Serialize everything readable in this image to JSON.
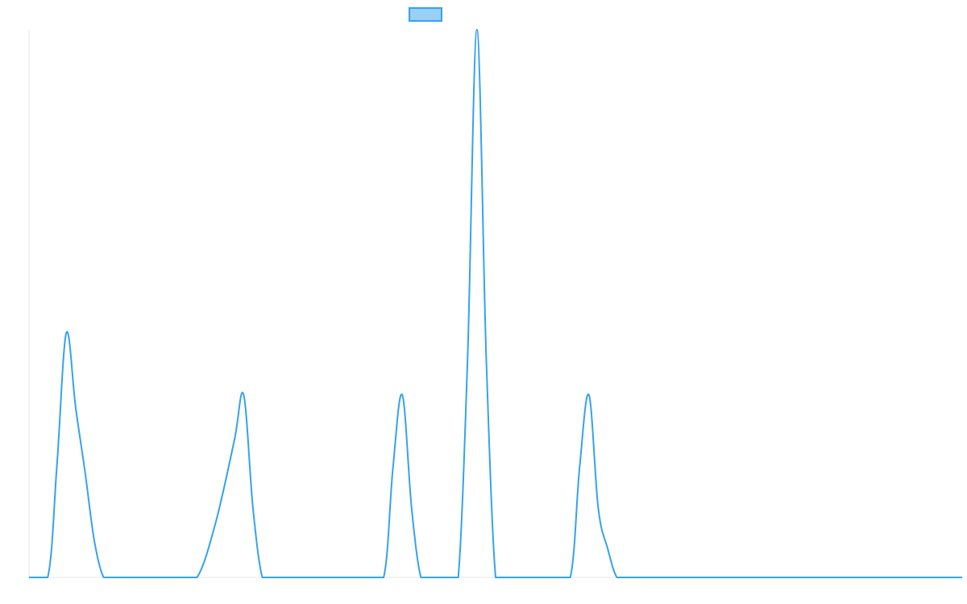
{
  "colors": {
    "line": "#36a2eb",
    "legend_fill": "#9ad0f5",
    "axis": "#e5e5e5",
    "background": "#ffffff"
  },
  "legend": {
    "placement": "top-center",
    "label": ""
  },
  "chart_data": {
    "type": "line",
    "title": "",
    "xlabel": "",
    "ylabel": "",
    "grid": false,
    "tick_labels_visible": false,
    "xlim": [
      0,
      50
    ],
    "ylim": [
      0,
      3
    ],
    "series": [
      {
        "label": "",
        "x": [
          0,
          1,
          1.5,
          2,
          2.5,
          3,
          3.5,
          4,
          4.5,
          5,
          6,
          7,
          8,
          9,
          10,
          11,
          11.5,
          12,
          12.5,
          13,
          13.5,
          14,
          15,
          16,
          17,
          18,
          19,
          19.5,
          20,
          20.5,
          21,
          21.5,
          22,
          22.5,
          23,
          23.5,
          24,
          24.5,
          25,
          25.5,
          26,
          27,
          28,
          29,
          29.5,
          30,
          30.5,
          31,
          31.5,
          32,
          33,
          34,
          35,
          36,
          37,
          38,
          39,
          40,
          41,
          42,
          43,
          44,
          45,
          46,
          47,
          48,
          49,
          50
        ],
        "y": [
          0,
          0,
          0.62,
          1.34,
          0.93,
          0.58,
          0.2,
          0,
          0,
          0,
          0,
          0,
          0,
          0,
          0.3,
          0.75,
          1.0,
          0.38,
          0,
          0,
          0,
          0,
          0,
          0,
          0,
          0,
          0,
          0.6,
          1.0,
          0.38,
          0,
          0,
          0,
          0,
          0,
          1.2,
          3.0,
          1.2,
          0,
          0,
          0,
          0,
          0,
          0,
          0.6,
          1.0,
          0.38,
          0.16,
          0,
          0,
          0,
          0,
          0,
          0,
          0,
          0,
          0,
          0,
          0,
          0,
          0,
          0,
          0,
          0,
          0,
          0,
          0,
          0
        ]
      }
    ]
  }
}
